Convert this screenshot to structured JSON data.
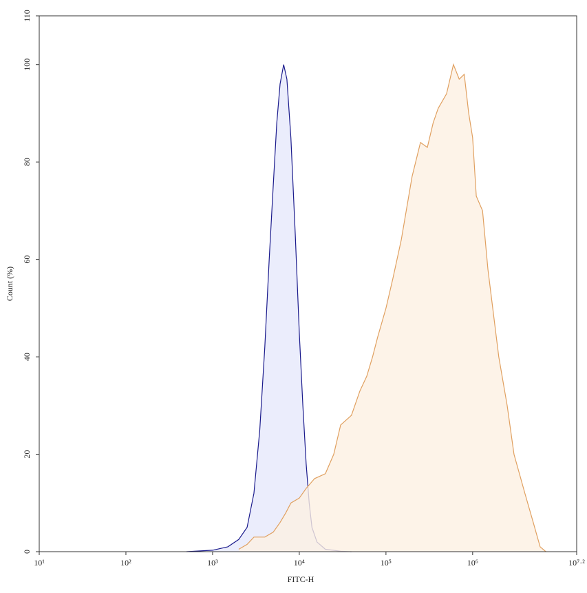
{
  "chart_data": {
    "type": "area",
    "x_label": "FITC-H",
    "y_label": "Count (%)",
    "xscale": "log",
    "xlim": [
      10,
      15848931.92
    ],
    "ylim": [
      0,
      110
    ],
    "xticks": [
      {
        "value": 10,
        "label": "10¹"
      },
      {
        "value": 100,
        "label": "10²"
      },
      {
        "value": 1000,
        "label": "10³"
      },
      {
        "value": 10000,
        "label": "10⁴"
      },
      {
        "value": 100000,
        "label": "10⁵"
      },
      {
        "value": 1000000,
        "label": "10⁶"
      },
      {
        "value": 15848931.92,
        "label": "10⁷·²"
      }
    ],
    "yticks": [
      0,
      20,
      40,
      60,
      80,
      100,
      110
    ],
    "series": [
      {
        "color": "#1a1a8c",
        "fill": "#e6e8fb",
        "x": [
          500,
          1000,
          1500,
          2000,
          2500,
          3000,
          3500,
          4000,
          4500,
          5000,
          5500,
          6000,
          6600,
          7200,
          8000,
          9000,
          10000,
          11000,
          12000,
          13000,
          14000,
          16000,
          20000,
          30000,
          40000
        ],
        "values": [
          0,
          0.3,
          1,
          2.5,
          5,
          12,
          25,
          42,
          60,
          75,
          88,
          96,
          100,
          97,
          85,
          65,
          45,
          30,
          18,
          10,
          5,
          2,
          0.5,
          0.1,
          0
        ]
      },
      {
        "color": "#e0a060",
        "fill": "#fdf0e2",
        "x": [
          2000,
          2500,
          3000,
          4000,
          5000,
          6000,
          7000,
          8000,
          10000,
          12000,
          15000,
          20000,
          25000,
          30000,
          40000,
          50000,
          60000,
          70000,
          80000,
          100000,
          120000,
          150000,
          200000,
          250000,
          300000,
          350000,
          400000,
          500000,
          600000,
          700000,
          800000,
          900000,
          1000000,
          1100000,
          1300000,
          1500000,
          2000000,
          2500000,
          3000000,
          4000000,
          5000000,
          6000000,
          7000000
        ],
        "values": [
          0.5,
          1.5,
          3,
          3,
          4,
          6,
          8,
          10,
          11,
          13,
          15,
          16,
          20,
          26,
          28,
          33,
          36,
          40,
          44,
          50,
          56,
          64,
          77,
          84,
          83,
          88,
          91,
          94,
          100,
          97,
          98,
          90,
          85,
          73,
          70,
          58,
          40,
          30,
          20,
          12,
          6,
          1,
          0
        ]
      }
    ]
  }
}
